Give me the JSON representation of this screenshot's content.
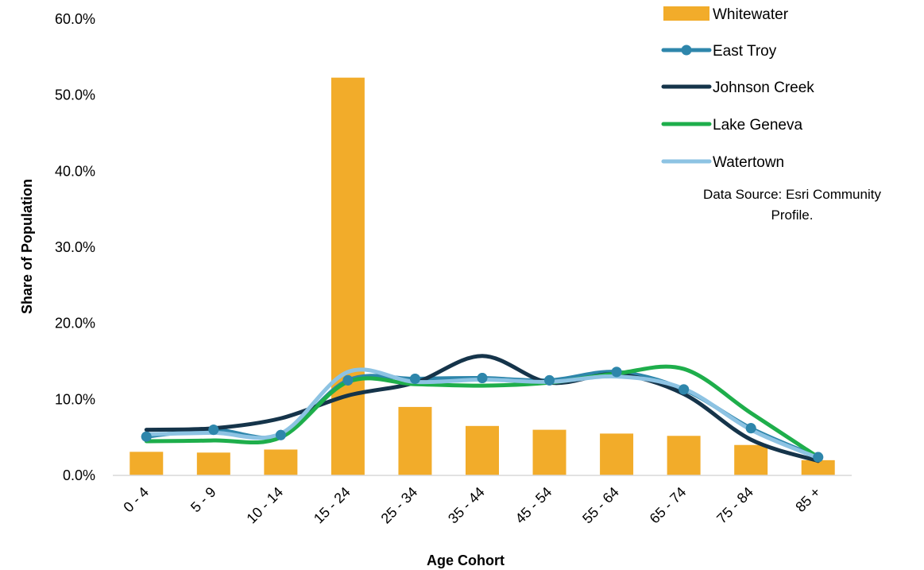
{
  "chart_data": {
    "type": "bar",
    "title": "",
    "xlabel": "Age Cohort",
    "ylabel": "Share of Population",
    "ylim": [
      0,
      60
    ],
    "y_ticks": [
      "0.0%",
      "10.0%",
      "20.0%",
      "30.0%",
      "40.0%",
      "50.0%",
      "60.0%"
    ],
    "y_tick_values": [
      0,
      10,
      20,
      30,
      40,
      50,
      60
    ],
    "categories": [
      "0 - 4",
      "5 - 9",
      "10 - 14",
      "15 - 24",
      "25 - 34",
      "35 - 44",
      "45 - 54",
      "55 - 64",
      "65 - 74",
      "75 - 84",
      "85 +"
    ],
    "legend_position": "top-right",
    "grid": false,
    "series": [
      {
        "name": "Whitewater",
        "type": "bar",
        "color": "#F2AC2A",
        "values": [
          3.1,
          3.0,
          3.4,
          52.3,
          9.0,
          6.5,
          6.0,
          5.5,
          5.2,
          4.0,
          2.0
        ]
      },
      {
        "name": "East Troy",
        "type": "line",
        "markers": true,
        "color": "#2E86AB",
        "values": [
          5.1,
          6.0,
          5.3,
          12.5,
          12.7,
          12.8,
          12.5,
          13.6,
          11.3,
          6.2,
          2.4
        ]
      },
      {
        "name": "Johnson Creek",
        "type": "line",
        "markers": false,
        "color": "#15344A",
        "values": [
          6.0,
          6.2,
          7.5,
          10.5,
          12.2,
          15.7,
          12.2,
          13.3,
          10.7,
          4.7,
          1.9
        ]
      },
      {
        "name": "Lake Geneva",
        "type": "line",
        "markers": false,
        "color": "#1EAE4B",
        "values": [
          4.5,
          4.6,
          5.0,
          12.3,
          12.0,
          11.8,
          12.2,
          13.4,
          14.0,
          8.2,
          2.4
        ]
      },
      {
        "name": "Watertown",
        "type": "line",
        "markers": false,
        "color": "#8DC3E3",
        "values": [
          5.4,
          5.6,
          5.5,
          13.6,
          12.3,
          12.6,
          12.3,
          13.0,
          11.4,
          6.0,
          2.3
        ]
      }
    ],
    "annotation": "Data Source: Esri Community Profile."
  }
}
